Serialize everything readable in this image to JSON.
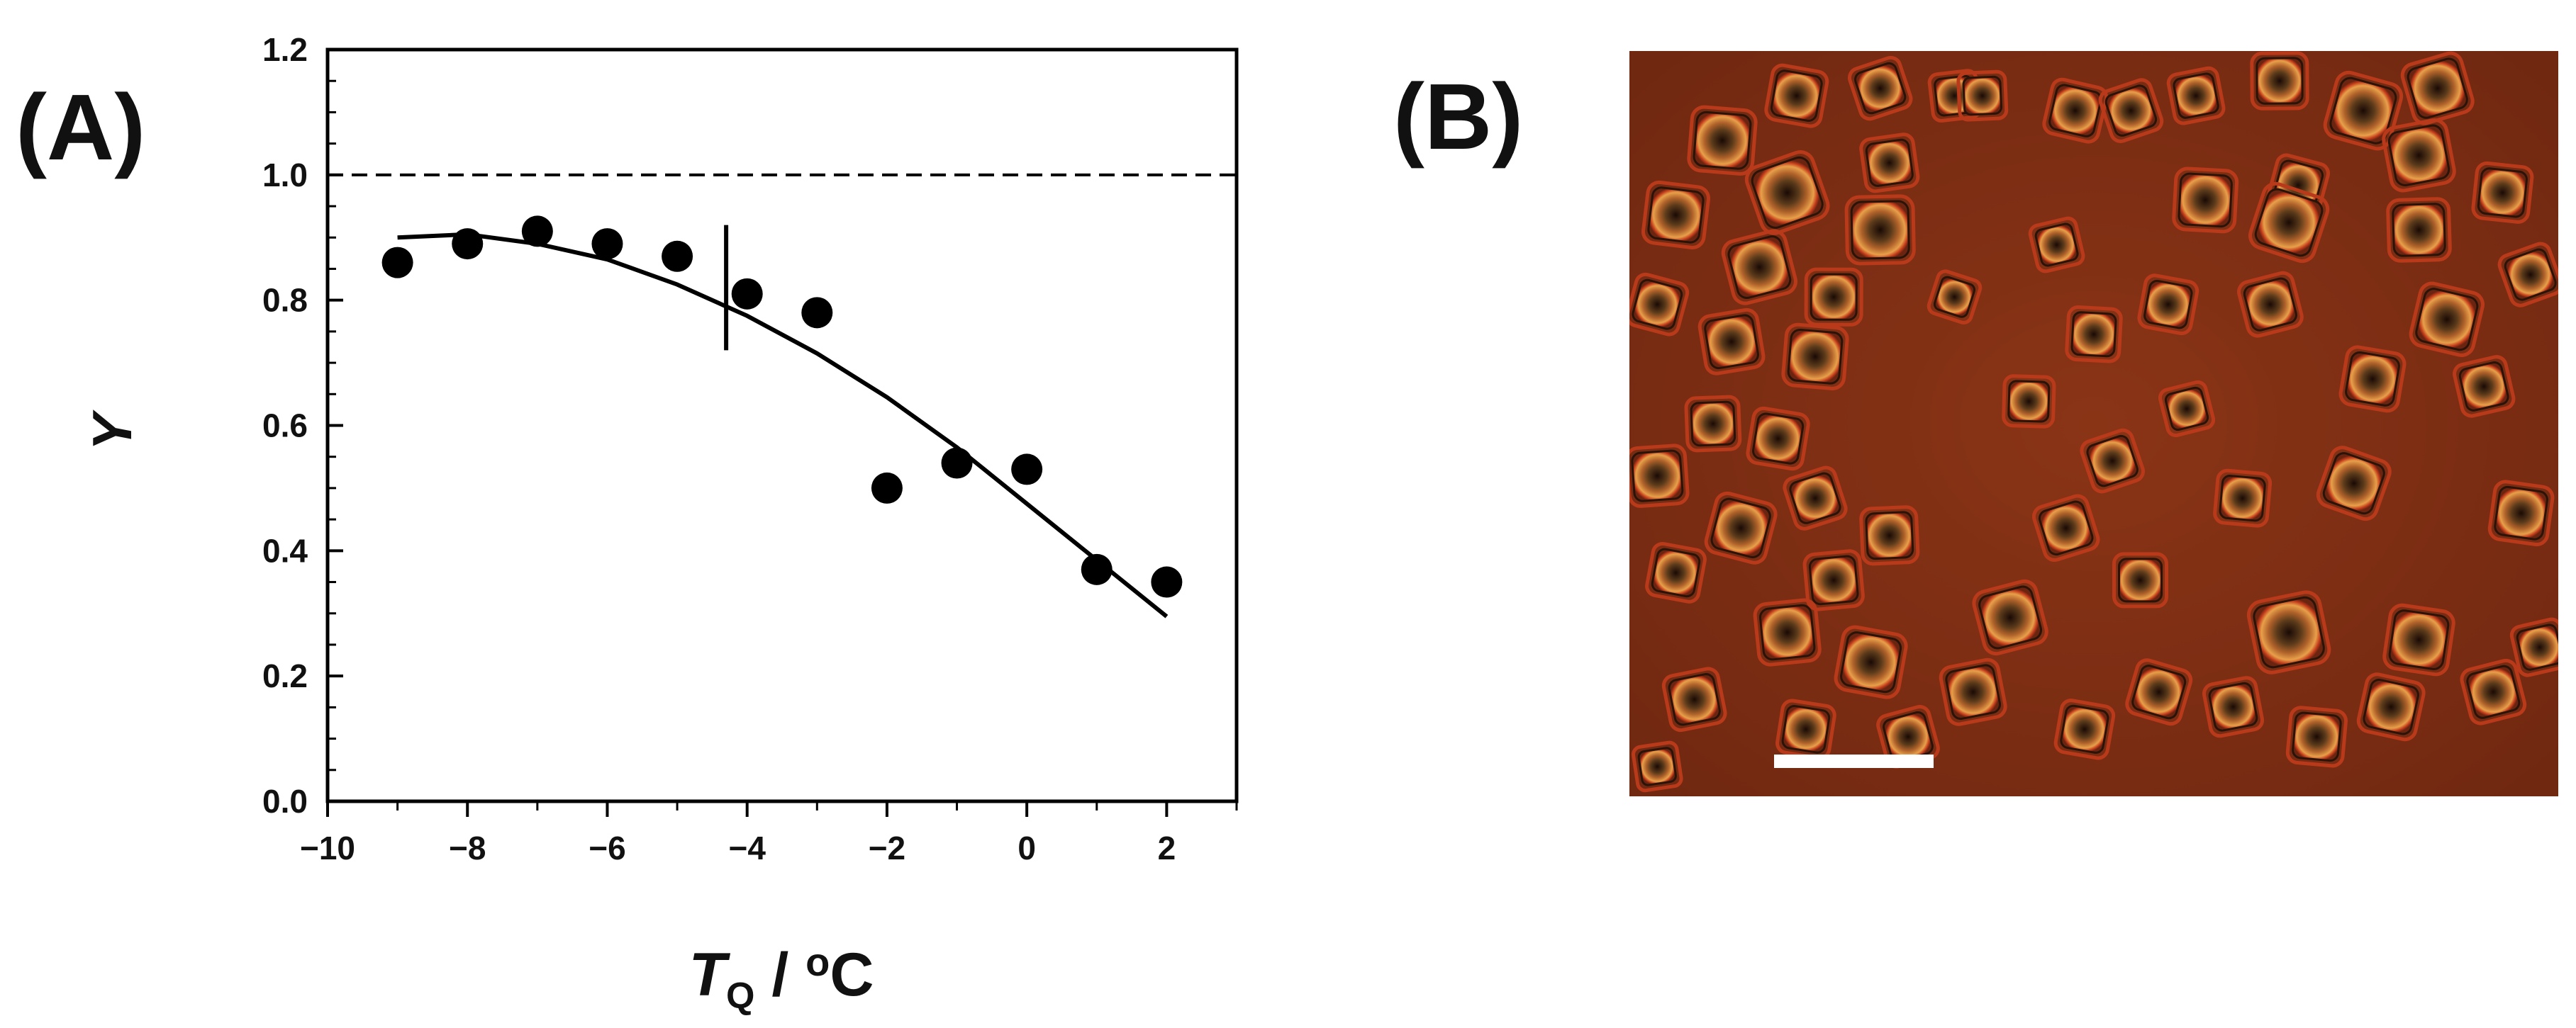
{
  "panels": {
    "a_label": "(A)",
    "b_label": "(B)"
  },
  "colors": {
    "ink": "#000000",
    "micrograph_background": "#7a2a12",
    "scale_bar": "#ffffff"
  },
  "chart_data": {
    "type": "scatter",
    "title": "",
    "xlabel": {
      "symbol": "T",
      "subscript": "Q",
      "unit": " / °C",
      "unit_prefix": " / ",
      "unit_sup": "o",
      "unit_suffix": "C"
    },
    "ylabel": "Y",
    "xlim": [
      -10,
      3
    ],
    "ylim": [
      0.0,
      1.2
    ],
    "x_ticks": [
      -10,
      -8,
      -6,
      -4,
      -2,
      0,
      2
    ],
    "x_tick_labels": [
      "−10",
      "−8",
      "−6",
      "−4",
      "−2",
      "0",
      "2"
    ],
    "y_ticks": [
      0.0,
      0.2,
      0.4,
      0.6,
      0.8,
      1.0,
      1.2
    ],
    "y_tick_labels": [
      "0.0",
      "0.2",
      "0.4",
      "0.6",
      "0.8",
      "1.0",
      "1.2"
    ],
    "grid": false,
    "legend": "none",
    "points": {
      "x": [
        -9,
        -8,
        -7,
        -6,
        -5,
        -4,
        -3,
        -2,
        -1,
        0,
        1,
        2
      ],
      "y": [
        0.86,
        0.89,
        0.91,
        0.89,
        0.87,
        0.81,
        0.78,
        0.5,
        0.54,
        0.53,
        0.37,
        0.35
      ]
    },
    "fit_curve": {
      "x": [
        -9,
        -8,
        -7,
        -6,
        -5,
        -4,
        -3,
        -2,
        -1,
        0,
        1,
        2
      ],
      "y": [
        0.9,
        0.905,
        0.89,
        0.865,
        0.825,
        0.775,
        0.715,
        0.645,
        0.565,
        0.475,
        0.385,
        0.295
      ]
    },
    "reference_line": {
      "y": 1.0,
      "style": "dashed"
    },
    "marker_line": {
      "x": -4.3,
      "y_range": [
        0.72,
        0.92
      ]
    }
  }
}
